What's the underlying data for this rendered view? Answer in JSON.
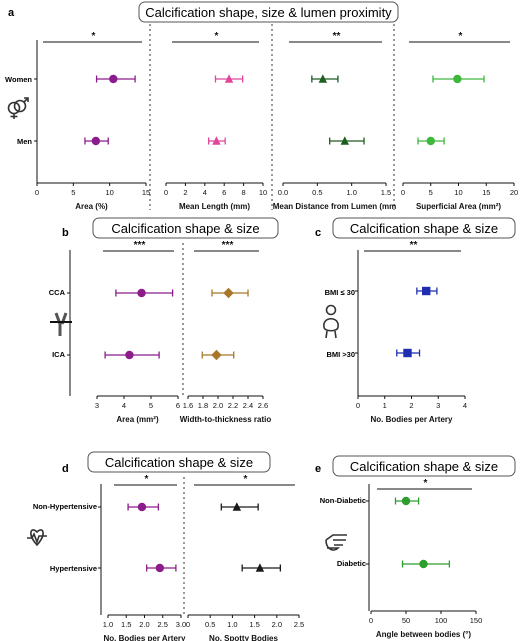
{
  "colors": {
    "purple": "#8B1C8C",
    "pink": "#E0469A",
    "darkgreen": "#1C5E20",
    "lightgreen": "#3DB83D",
    "gold": "#A8782A",
    "black": "#1a1a1a",
    "blue": "#1F2DB0",
    "green": "#2E9E2E"
  },
  "icons": {
    "a": "gender-symbol-icon",
    "b": "artery-bifurcation-icon",
    "c": "body-weight-icon",
    "d": "heart-rate-icon",
    "e": "hand-pointing-icon"
  },
  "chart_data": [
    {
      "panel": "a",
      "title": "Calcification shape, size & lumen proximity",
      "type": "scatter",
      "categories": [
        "Women",
        "Men"
      ],
      "subplots": [
        {
          "xlabel": "Area (%)",
          "xlim": [
            0,
            15
          ],
          "ticks": [
            0,
            5,
            10,
            15
          ],
          "marker": "circle",
          "color_key": "purple",
          "points": [
            {
              "category": "Women",
              "value": 10.5,
              "low": 8.2,
              "high": 13.5
            },
            {
              "category": "Men",
              "value": 8.1,
              "low": 6.6,
              "high": 9.8
            }
          ],
          "significance": "*"
        },
        {
          "xlabel": "Mean Length (mm)",
          "xlim": [
            0,
            10
          ],
          "ticks": [
            0,
            2,
            4,
            6,
            8,
            10
          ],
          "marker": "triangle",
          "color_key": "pink",
          "points": [
            {
              "category": "Women",
              "value": 6.5,
              "low": 5.1,
              "high": 7.9
            },
            {
              "category": "Men",
              "value": 5.2,
              "low": 4.4,
              "high": 6.1
            }
          ],
          "significance": "*"
        },
        {
          "xlabel": "Mean Distance from Lumen (mm",
          "xlim": [
            0,
            1.5
          ],
          "ticks": [
            0.0,
            0.5,
            1.0,
            1.5
          ],
          "tick_labels": [
            "0.0",
            "0.5",
            "1.0",
            "1.5"
          ],
          "marker": "triangle",
          "color_key": "darkgreen",
          "points": [
            {
              "category": "Women",
              "value": 0.58,
              "low": 0.42,
              "high": 0.8
            },
            {
              "category": "Men",
              "value": 0.9,
              "low": 0.68,
              "high": 1.18
            }
          ],
          "significance": "**"
        },
        {
          "xlabel": "Superficial Area (mm²)",
          "xlim": [
            0,
            20
          ],
          "ticks": [
            0,
            5,
            10,
            15,
            20
          ],
          "marker": "circle",
          "color_key": "lightgreen",
          "points": [
            {
              "category": "Women",
              "value": 9.8,
              "low": 5.4,
              "high": 14.6
            },
            {
              "category": "Men",
              "value": 5.0,
              "low": 2.7,
              "high": 7.4
            }
          ],
          "significance": "*"
        }
      ]
    },
    {
      "panel": "b",
      "title": "Calcification shape & size",
      "type": "scatter",
      "categories": [
        "CCA",
        "ICA"
      ],
      "subplots": [
        {
          "xlabel": "Area (mm²)",
          "xlim": [
            3,
            6
          ],
          "ticks": [
            3,
            4,
            5,
            6
          ],
          "marker": "circle",
          "color_key": "purple",
          "points": [
            {
              "category": "CCA",
              "value": 4.65,
              "low": 3.7,
              "high": 5.8
            },
            {
              "category": "ICA",
              "value": 4.2,
              "low": 3.3,
              "high": 5.3
            }
          ],
          "significance": "***"
        },
        {
          "xlabel": "Width-to-thickness ratio",
          "xlim": [
            1.6,
            2.6
          ],
          "ticks": [
            1.6,
            1.8,
            2.0,
            2.2,
            2.4,
            2.6
          ],
          "tick_labels": [
            "1.6",
            "1.8",
            "2.0",
            "2.2",
            "2.4",
            "2.6"
          ],
          "marker": "diamond",
          "color_key": "gold",
          "points": [
            {
              "category": "CCA",
              "value": 2.14,
              "low": 1.92,
              "high": 2.4
            },
            {
              "category": "ICA",
              "value": 1.98,
              "low": 1.79,
              "high": 2.21
            }
          ],
          "significance": "***"
        }
      ]
    },
    {
      "panel": "c",
      "title": "Calcification shape & size",
      "type": "scatter",
      "categories": [
        "BMI ≤ 30",
        "BMI >30"
      ],
      "subplots": [
        {
          "xlabel": "No. Bodies per Artery",
          "xlim": [
            0,
            4
          ],
          "ticks": [
            0,
            1,
            2,
            3,
            4
          ],
          "marker": "square",
          "color_key": "blue",
          "points": [
            {
              "category": "BMI ≤ 30",
              "value": 2.55,
              "low": 2.2,
              "high": 2.95
            },
            {
              "category": "BMI >30",
              "value": 1.85,
              "low": 1.45,
              "high": 2.3
            }
          ],
          "significance": "**"
        }
      ]
    },
    {
      "panel": "d",
      "title": "Calcification shape & size",
      "type": "scatter",
      "categories": [
        "Non-Hypertensive",
        "Hypertensive"
      ],
      "subplots": [
        {
          "xlabel": "No. Bodies per Artery",
          "xlim": [
            1.0,
            3.0
          ],
          "ticks": [
            1.0,
            1.5,
            2.0,
            2.5,
            3.0
          ],
          "tick_labels": [
            "1.0",
            "1.5",
            "2.0",
            "2.5",
            "3.0"
          ],
          "marker": "circle",
          "color_key": "purple",
          "points": [
            {
              "category": "Non-Hypertensive",
              "value": 1.93,
              "low": 1.55,
              "high": 2.38
            },
            {
              "category": "Hypertensive",
              "value": 2.42,
              "low": 2.06,
              "high": 2.86
            }
          ],
          "significance": "*"
        },
        {
          "xlabel": "No. Spotty Bodies",
          "xlim": [
            0,
            2.5
          ],
          "ticks": [
            0,
            0.5,
            1.0,
            1.5,
            2.0,
            2.5
          ],
          "tick_labels": [
            "0",
            "0.5",
            "1.0",
            "1.5",
            "2.0",
            "2.5"
          ],
          "marker": "triangle",
          "color_key": "black",
          "points": [
            {
              "category": "Non-Hypertensive",
              "value": 1.1,
              "low": 0.75,
              "high": 1.58
            },
            {
              "category": "Hypertensive",
              "value": 1.62,
              "low": 1.22,
              "high": 2.08
            }
          ],
          "significance": "*"
        }
      ]
    },
    {
      "panel": "e",
      "title": "Calcification shape & size",
      "type": "scatter",
      "categories": [
        "Non-Diabetic",
        "Diabetic"
      ],
      "subplots": [
        {
          "xlabel": "Angle between bodies (°)",
          "xlim": [
            0,
            150
          ],
          "ticks": [
            0,
            50,
            100,
            150
          ],
          "marker": "circle",
          "color_key": "green",
          "points": [
            {
              "category": "Non-Diabetic",
              "value": 50,
              "low": 35,
              "high": 68
            },
            {
              "category": "Diabetic",
              "value": 75,
              "low": 45,
              "high": 112
            }
          ],
          "significance": "*"
        }
      ]
    }
  ]
}
